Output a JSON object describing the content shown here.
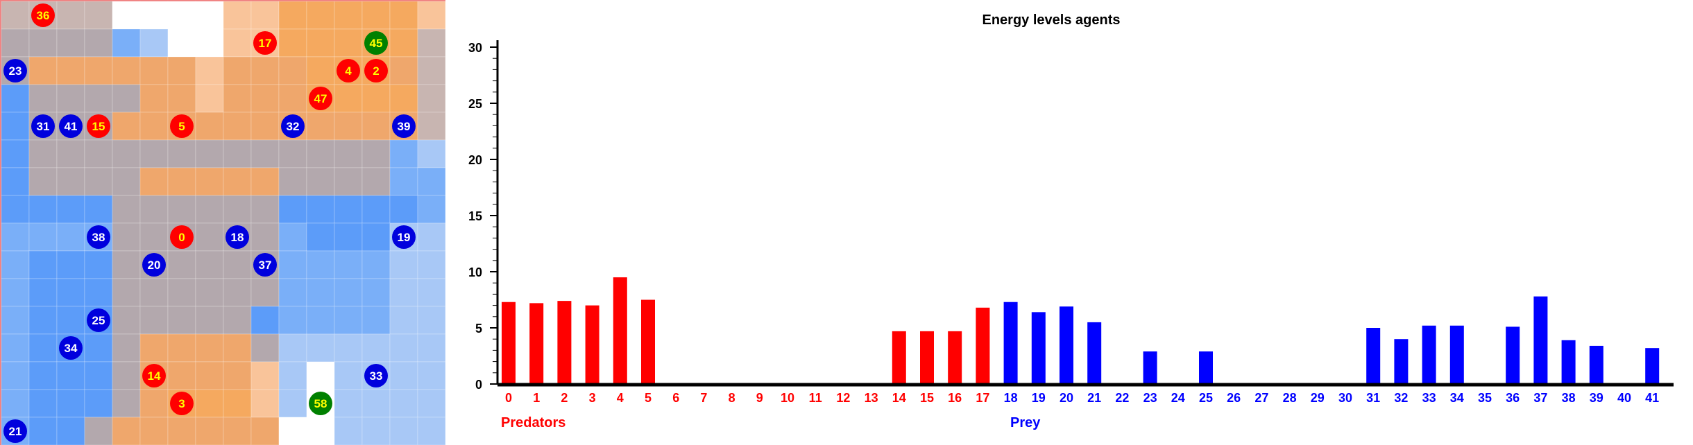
{
  "grid": {
    "cols": 16,
    "rows": 16,
    "palette": {
      "b": "#5c9cf9",
      "m": "#7aaff8",
      "l": "#a8c8f6",
      "g": "#b3a8ad",
      "G": "#c8b5b1",
      "o": "#efa76c",
      "O": "#f5a95f",
      "p": "#f9c49a",
      "w": "#ffffff",
      "R": "#f08080"
    },
    "cells": [
      "GGGGwwwwppOOOOOp",
      "ggggmlwwppOOOOOG",
      "goooooopoooOOOoG",
      "bggggoopoooOOOOG",
      "bgggoooooooooooG",
      "bgggggggggggggml",
      "bggggoooooggggmm",
      "bbbbggggggbbbbbm",
      "mmmmggggggmbbbll",
      "mbbbggggggmmmmll",
      "mbbbggggggmmmmll",
      "mbbbgggggbmmmmll",
      "mbbbgooooglllllll",
      "mbbbgooooplwlllll",
      "mbbbgoOOOplwllll",
      "mbbgoooooowwllll"
    ]
  },
  "agents": [
    {
      "id": "36",
      "kind": "predator",
      "col": 1,
      "row": 0
    },
    {
      "id": "17",
      "kind": "predator",
      "col": 9,
      "row": 1
    },
    {
      "id": "45",
      "kind": "plant",
      "col": 13,
      "row": 1
    },
    {
      "id": "23",
      "kind": "prey",
      "col": 0,
      "row": 2
    },
    {
      "id": "4",
      "kind": "predator",
      "col": 12,
      "row": 2
    },
    {
      "id": "2",
      "kind": "predator",
      "col": 13,
      "row": 2
    },
    {
      "id": "47",
      "kind": "predator",
      "col": 11,
      "row": 3
    },
    {
      "id": "31",
      "kind": "prey",
      "col": 1,
      "row": 4
    },
    {
      "id": "41",
      "kind": "prey",
      "col": 2,
      "row": 4
    },
    {
      "id": "15",
      "kind": "predator",
      "col": 3,
      "row": 4
    },
    {
      "id": "5",
      "kind": "predator",
      "col": 6,
      "row": 4
    },
    {
      "id": "32",
      "kind": "prey",
      "col": 10,
      "row": 4
    },
    {
      "id": "39",
      "kind": "prey",
      "col": 14,
      "row": 4
    },
    {
      "id": "38",
      "kind": "prey",
      "col": 3,
      "row": 8
    },
    {
      "id": "0",
      "kind": "predator",
      "col": 6,
      "row": 8
    },
    {
      "id": "18",
      "kind": "prey",
      "col": 8,
      "row": 8
    },
    {
      "id": "19",
      "kind": "prey",
      "col": 14,
      "row": 8
    },
    {
      "id": "20",
      "kind": "prey",
      "col": 5,
      "row": 9
    },
    {
      "id": "37",
      "kind": "prey",
      "col": 9,
      "row": 9
    },
    {
      "id": "25",
      "kind": "prey",
      "col": 3,
      "row": 11
    },
    {
      "id": "34",
      "kind": "prey",
      "col": 2,
      "row": 12
    },
    {
      "id": "14",
      "kind": "predator",
      "col": 5,
      "row": 13
    },
    {
      "id": "33",
      "kind": "prey",
      "col": 13,
      "row": 13
    },
    {
      "id": "3",
      "kind": "predator",
      "col": 6,
      "row": 14
    },
    {
      "id": "58",
      "kind": "plant",
      "col": 11,
      "row": 14
    },
    {
      "id": "21",
      "kind": "prey",
      "col": 0,
      "row": 15
    }
  ],
  "agent_colors": {
    "predator": {
      "fill": "#ff0000",
      "text": "#ffff00"
    },
    "prey": {
      "fill": "#0000dd",
      "text": "#ffffff"
    },
    "plant": {
      "fill": "#008000",
      "text": "#ffff00"
    }
  },
  "chart_data": {
    "type": "bar",
    "title": "Energy levels agents",
    "ylim": [
      0,
      30
    ],
    "yticks": [
      0,
      5,
      10,
      15,
      20,
      25,
      30
    ],
    "categories": [
      "0",
      "1",
      "2",
      "3",
      "4",
      "5",
      "6",
      "7",
      "8",
      "9",
      "10",
      "11",
      "12",
      "13",
      "14",
      "15",
      "16",
      "17",
      "18",
      "19",
      "20",
      "21",
      "22",
      "23",
      "24",
      "25",
      "26",
      "27",
      "28",
      "29",
      "30",
      "31",
      "32",
      "33",
      "34",
      "35",
      "36",
      "37",
      "38",
      "39",
      "40",
      "41"
    ],
    "values": [
      7.3,
      7.2,
      7.4,
      7.0,
      9.5,
      7.5,
      0,
      0,
      0,
      0,
      0,
      0,
      0,
      0,
      4.7,
      4.7,
      4.7,
      6.8,
      7.3,
      6.4,
      6.9,
      5.5,
      0,
      2.9,
      0,
      2.9,
      0,
      0,
      0,
      0,
      0,
      5.0,
      4.0,
      5.2,
      5.2,
      0,
      5.1,
      7.8,
      3.9,
      3.4,
      0,
      3.2
    ],
    "group_colors": {
      "predators": "#ff0000",
      "prey": "#0000ff"
    },
    "predator_last_index": 17,
    "legend": {
      "predators": "Predators",
      "prey": "Prey"
    }
  }
}
